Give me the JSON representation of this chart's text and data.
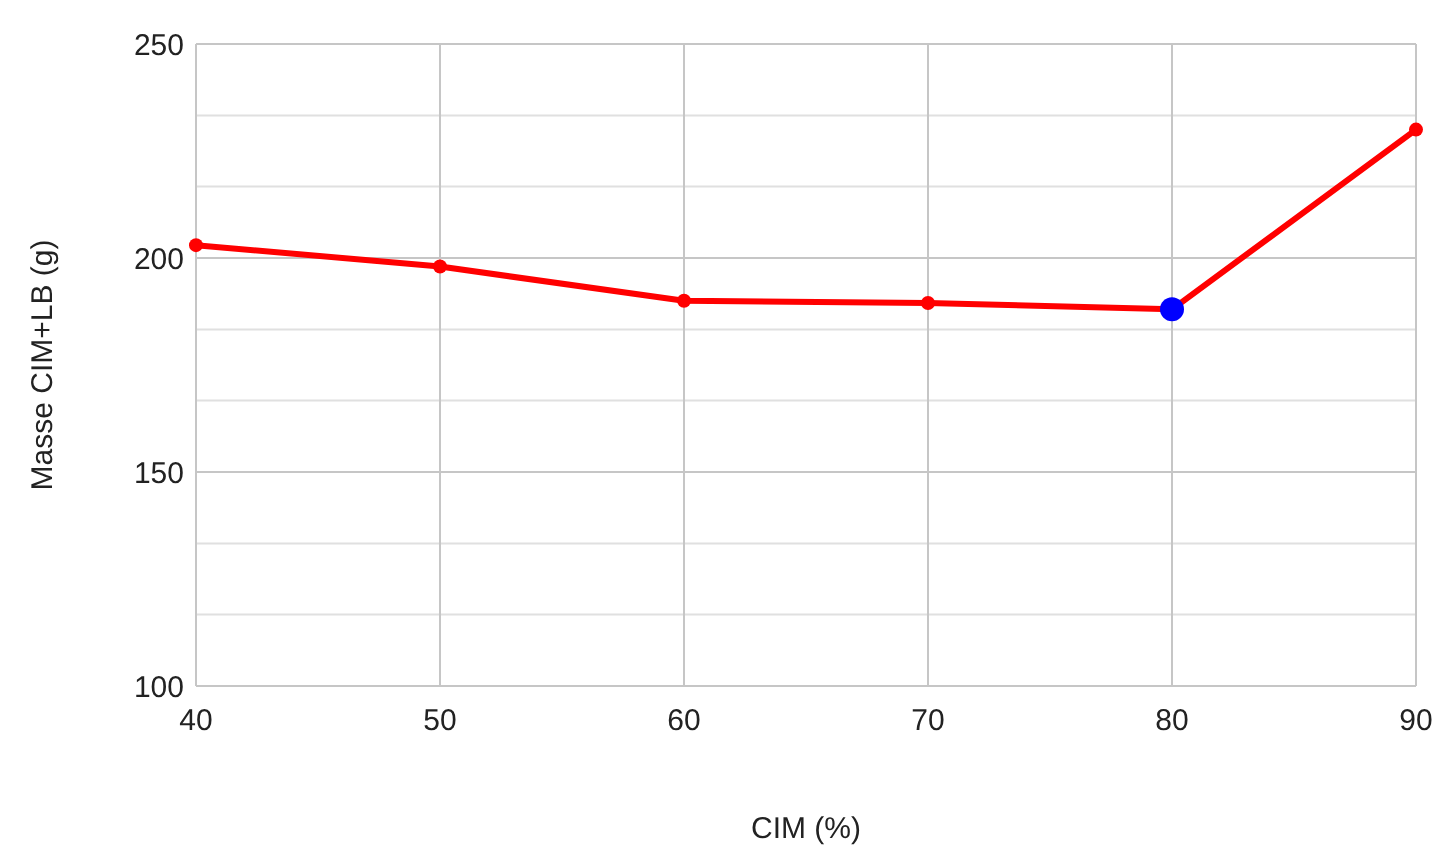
{
  "chart_data": {
    "type": "line",
    "xlabel": "CIM (%)",
    "ylabel": "Masse CIM+LB (g)",
    "x": [
      40,
      50,
      60,
      70,
      80,
      90
    ],
    "series": [
      {
        "color": "#ff0000",
        "values": [
          203,
          198,
          190,
          189.5,
          188,
          230
        ]
      },
      {
        "type": "scatter",
        "color": "#0000ff",
        "x": [
          80
        ],
        "values": [
          188
        ]
      }
    ],
    "xlim": [
      40,
      90
    ],
    "xticks": [
      40,
      50,
      60,
      70,
      80,
      90
    ],
    "ylim": [
      100,
      250
    ],
    "yticks": [
      100,
      {
        "value": 116.7,
        "label": null
      },
      {
        "value": 133.3,
        "label": null
      },
      150,
      {
        "value": 166.7,
        "label": null
      },
      {
        "value": 183.3,
        "label": null
      },
      200,
      {
        "value": 216.7,
        "label": null
      },
      {
        "value": 233.3,
        "label": null
      },
      250
    ],
    "grid": true,
    "marker": "circle",
    "line_style": "solid"
  }
}
